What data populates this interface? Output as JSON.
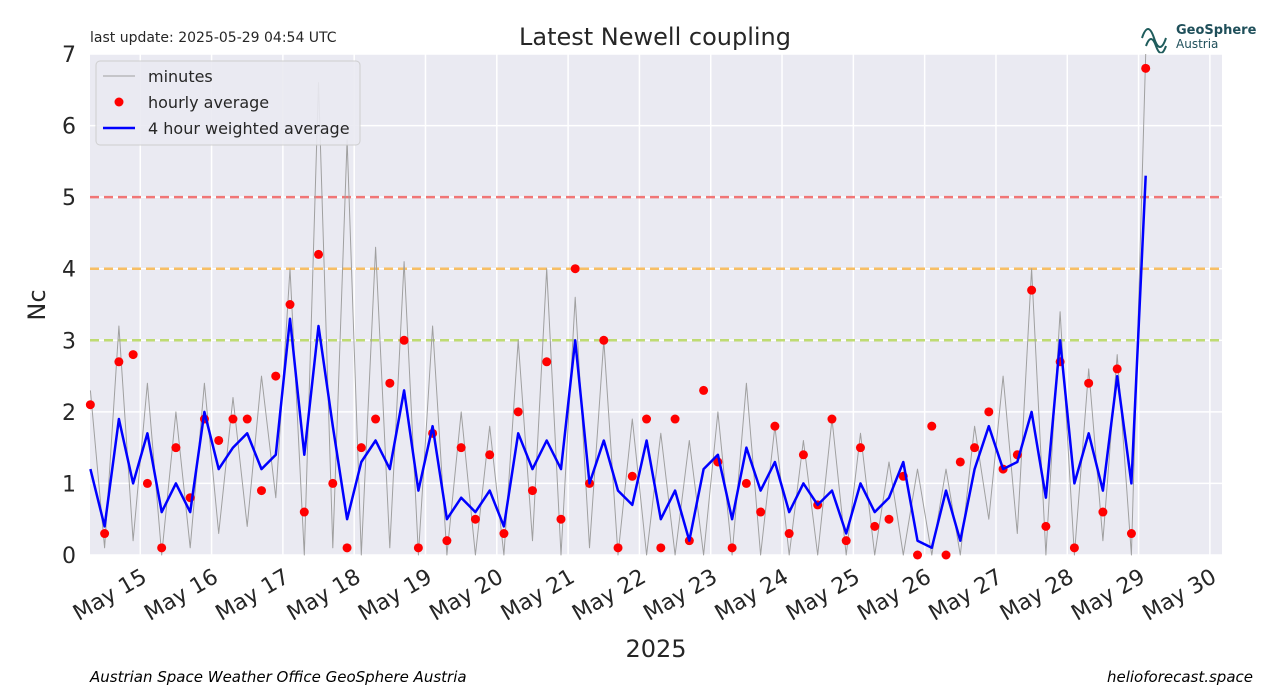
{
  "header": {
    "update": "last update: 2025-05-29 04:54 UTC",
    "logo_name": "GeoSphere",
    "logo_sub": "Austria"
  },
  "footer": {
    "left": "Austrian Space Weather Office   GeoSphere Austria",
    "right": "helioforecast.space"
  },
  "chart_data": {
    "type": "line",
    "title": "Latest Newell coupling",
    "y_label": "Nc",
    "x_label": "2025",
    "xlim": [
      14.295,
      30.17
    ],
    "ylim": [
      0,
      7
    ],
    "grid": true,
    "legend": "upper left",
    "yticks": [
      0,
      1,
      2,
      3,
      4,
      5,
      6,
      7
    ],
    "xticks": [
      {
        "value": 15,
        "label": "May 15"
      },
      {
        "value": 16,
        "label": "May 16"
      },
      {
        "value": 17,
        "label": "May 17"
      },
      {
        "value": 18,
        "label": "May 18"
      },
      {
        "value": 19,
        "label": "May 19"
      },
      {
        "value": 20,
        "label": "May 20"
      },
      {
        "value": 21,
        "label": "May 21"
      },
      {
        "value": 22,
        "label": "May 22"
      },
      {
        "value": 23,
        "label": "May 23"
      },
      {
        "value": 24,
        "label": "May 24"
      },
      {
        "value": 25,
        "label": "May 25"
      },
      {
        "value": 26,
        "label": "May 26"
      },
      {
        "value": 27,
        "label": "May 27"
      },
      {
        "value": 28,
        "label": "May 28"
      },
      {
        "value": 29,
        "label": "May 29"
      },
      {
        "value": 30,
        "label": "May 30"
      }
    ],
    "thresholds": [
      {
        "value": 3,
        "color": "#b5d65a"
      },
      {
        "value": 4,
        "color": "#f7b54a"
      },
      {
        "value": 5,
        "color": "#f06060"
      }
    ],
    "x": [
      14.3,
      14.5,
      14.7,
      14.9,
      15.1,
      15.3,
      15.5,
      15.7,
      15.9,
      16.1,
      16.3,
      16.5,
      16.7,
      16.9,
      17.1,
      17.3,
      17.5,
      17.7,
      17.9,
      18.1,
      18.3,
      18.5,
      18.7,
      18.9,
      19.1,
      19.3,
      19.5,
      19.7,
      19.9,
      20.1,
      20.3,
      20.5,
      20.7,
      20.9,
      21.1,
      21.3,
      21.5,
      21.7,
      21.9,
      22.1,
      22.3,
      22.5,
      22.7,
      22.9,
      23.1,
      23.3,
      23.5,
      23.7,
      23.9,
      24.1,
      24.3,
      24.5,
      24.7,
      24.9,
      25.1,
      25.3,
      25.5,
      25.7,
      25.9,
      26.1,
      26.3,
      26.5,
      26.7,
      26.9,
      27.1,
      27.3,
      27.5,
      27.7,
      27.9,
      28.1,
      28.3,
      28.5,
      28.7,
      28.9,
      29.1
    ],
    "series": [
      {
        "name": "minutes",
        "color": "#a0a0a0",
        "style": "line",
        "values": [
          2.3,
          0.1,
          3.2,
          0.2,
          2.4,
          0.0,
          2.0,
          0.1,
          2.4,
          0.3,
          2.2,
          0.4,
          2.5,
          0.8,
          4.0,
          0.0,
          6.6,
          0.1,
          5.8,
          0.0,
          4.3,
          0.1,
          4.1,
          0.0,
          3.2,
          0.0,
          2.0,
          0.0,
          1.8,
          0.0,
          3.0,
          0.2,
          4.0,
          0.0,
          3.6,
          0.1,
          3.0,
          0.0,
          1.9,
          0.0,
          1.7,
          0.0,
          1.6,
          0.0,
          2.0,
          0.0,
          2.4,
          0.0,
          1.8,
          0.0,
          1.6,
          0.0,
          1.9,
          0.0,
          1.7,
          0.0,
          1.3,
          0.0,
          1.2,
          0.0,
          1.2,
          0.0,
          1.8,
          0.5,
          2.5,
          0.3,
          4.0,
          0.0,
          3.4,
          0.0,
          2.6,
          0.2,
          2.8,
          0.0,
          7.0
        ]
      },
      {
        "name": "hourly average",
        "color": "#ff0000",
        "style": "dots",
        "values": [
          2.1,
          0.3,
          2.7,
          2.8,
          1.0,
          0.1,
          1.5,
          0.8,
          1.9,
          1.6,
          1.9,
          1.9,
          0.9,
          2.5,
          3.5,
          0.6,
          4.2,
          1.0,
          0.1,
          1.5,
          1.9,
          2.4,
          3.0,
          0.1,
          1.7,
          0.2,
          1.5,
          0.5,
          1.4,
          0.3,
          2.0,
          0.9,
          2.7,
          0.5,
          4.0,
          1.0,
          3.0,
          0.1,
          1.1,
          1.9,
          0.1,
          1.9,
          0.2,
          2.3,
          1.3,
          0.1,
          1.0,
          0.6,
          1.8,
          0.3,
          1.4,
          0.7,
          1.9,
          0.2,
          1.5,
          0.4,
          0.5,
          1.1,
          0.0,
          1.8,
          0.0,
          1.3,
          1.5,
          2.0,
          1.2,
          1.4,
          3.7,
          0.4,
          2.7,
          0.1,
          2.4,
          0.6,
          2.6,
          0.3,
          6.8
        ]
      },
      {
        "name": "4 hour weighted average",
        "color": "#0000ff",
        "style": "line",
        "values": [
          1.2,
          0.4,
          1.9,
          1.0,
          1.7,
          0.6,
          1.0,
          0.6,
          2.0,
          1.2,
          1.5,
          1.7,
          1.2,
          1.4,
          3.3,
          1.4,
          3.2,
          1.8,
          0.5,
          1.3,
          1.6,
          1.2,
          2.3,
          0.9,
          1.8,
          0.5,
          0.8,
          0.6,
          0.9,
          0.4,
          1.7,
          1.2,
          1.6,
          1.2,
          3.0,
          1.0,
          1.6,
          0.9,
          0.7,
          1.6,
          0.5,
          0.9,
          0.2,
          1.2,
          1.4,
          0.5,
          1.5,
          0.9,
          1.3,
          0.6,
          1.0,
          0.7,
          0.9,
          0.3,
          1.0,
          0.6,
          0.8,
          1.3,
          0.2,
          0.1,
          0.9,
          0.2,
          1.2,
          1.8,
          1.2,
          1.3,
          2.0,
          0.8,
          3.0,
          1.0,
          1.7,
          0.9,
          2.5,
          1.0,
          5.3
        ]
      }
    ]
  }
}
